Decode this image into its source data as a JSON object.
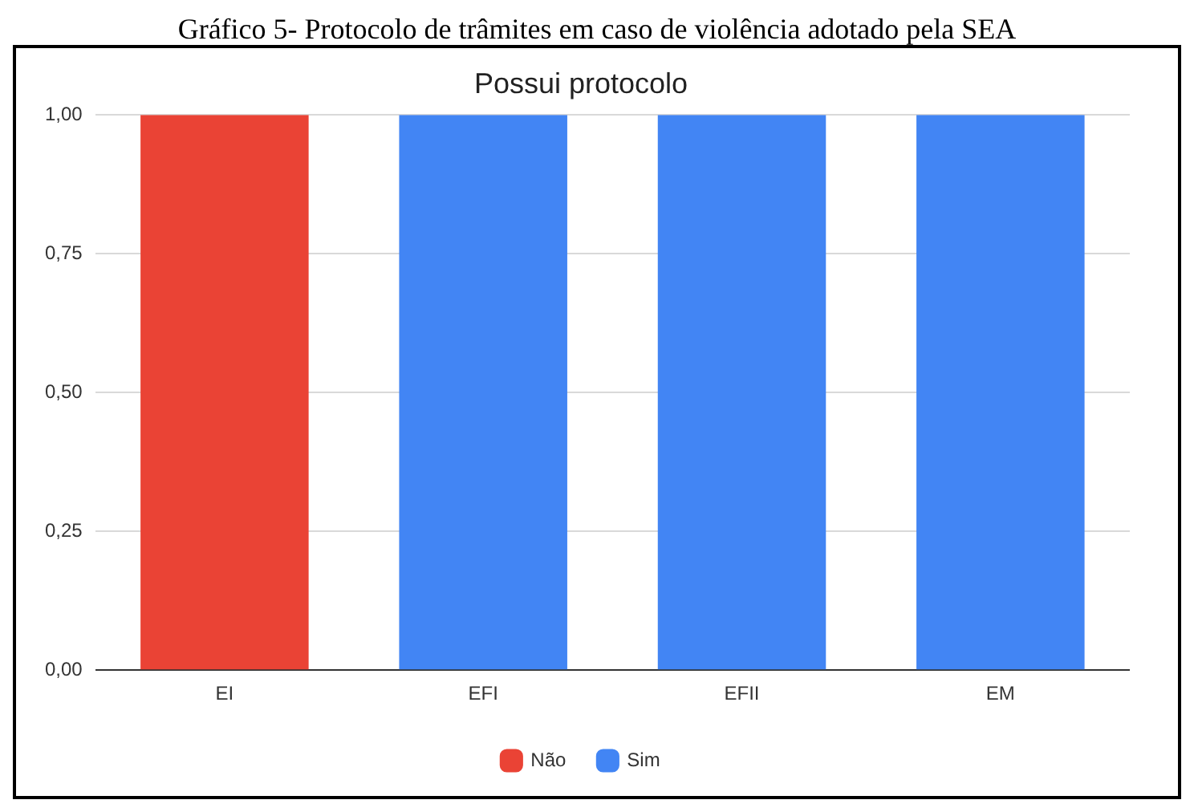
{
  "chart_data": {
    "type": "bar",
    "title": "Possui protocolo",
    "annotations": [
      "Gráfico 5- Protocolo de trâmites em caso de violência adotado pela SEA"
    ],
    "categories": [
      "EI",
      "EFI",
      "EFII",
      "EM"
    ],
    "series": [
      {
        "name": "Não",
        "color": "#ea4335",
        "values": [
          1,
          null,
          null,
          null
        ]
      },
      {
        "name": "Sim",
        "color": "#4285f4",
        "values": [
          null,
          1,
          1,
          1
        ]
      }
    ],
    "stacked": true,
    "ylim": [
      0,
      1
    ],
    "yticks": [
      {
        "value": 0,
        "label": "0,00"
      },
      {
        "value": 0.25,
        "label": "0,25"
      },
      {
        "value": 0.5,
        "label": "0,50"
      },
      {
        "value": 0.75,
        "label": "0,75"
      },
      {
        "value": 1,
        "label": "1,00"
      }
    ],
    "grid": "y",
    "legend": "bottom"
  }
}
